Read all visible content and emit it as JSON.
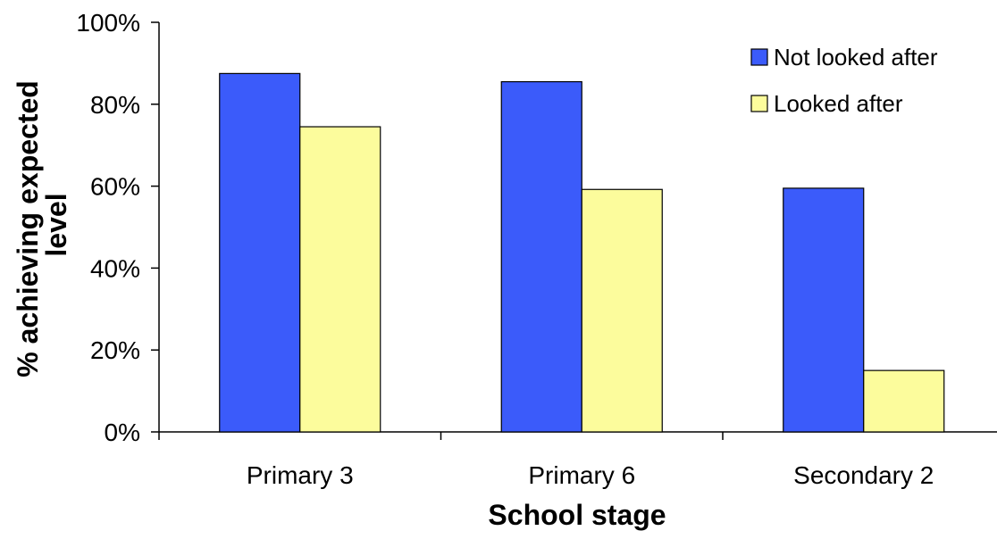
{
  "chart_data": {
    "type": "bar",
    "categories": [
      "Primary 3",
      "Primary 6",
      "Secondary 2"
    ],
    "series": [
      {
        "name": "Not looked after",
        "values": [
          87.5,
          85.5,
          59.5
        ],
        "color": "#3b5bfa"
      },
      {
        "name": "Looked after",
        "values": [
          74.5,
          59.2,
          15.0
        ],
        "color": "#fcfc9c"
      }
    ],
    "xlabel": "School stage",
    "ylabel": "% achieving expected level",
    "ylim": [
      0,
      100
    ],
    "yticks": [
      "0%",
      "20%",
      "40%",
      "60%",
      "80%",
      "100%"
    ],
    "ytick_values": [
      0,
      20,
      40,
      60,
      80,
      100
    ],
    "legend_position": "top-right",
    "grid": false
  }
}
